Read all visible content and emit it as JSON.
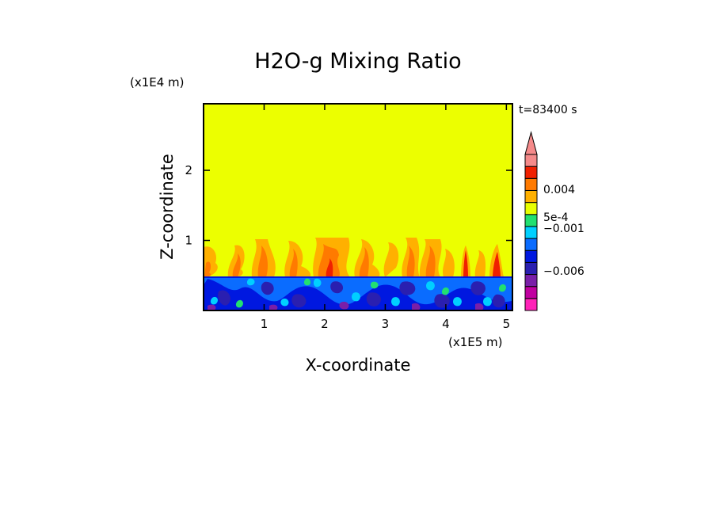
{
  "chart_data": {
    "type": "heatmap",
    "title": "H2O-g Mixing Ratio",
    "xlabel": "X-coordinate",
    "ylabel": "Z-coordinate",
    "x_scale_label": "(x1E5 m)",
    "y_scale_label": "(x1E4 m)",
    "time_label": "t=83400 s",
    "xlim": [
      0,
      5.1
    ],
    "ylim": [
      0,
      2.95
    ],
    "x_ticks": [
      1,
      2,
      3,
      4,
      5
    ],
    "y_ticks": [
      1,
      2
    ],
    "boundary_layer_top": 0.5,
    "colorbar": {
      "levels": [
        {
          "color": "#ff22b8"
        },
        {
          "color": "#c000a0"
        },
        {
          "color": "#7a1fa8"
        },
        {
          "color": "#2a1fb0"
        },
        {
          "color": "#0018e0"
        },
        {
          "color": "#0a6cff"
        },
        {
          "color": "#00d0ff"
        },
        {
          "color": "#22e070"
        },
        {
          "color": "#e8ff00"
        },
        {
          "color": "#ffb000"
        },
        {
          "color": "#ff7a00"
        },
        {
          "color": "#f02000"
        },
        {
          "color": "#f58a8a"
        }
      ],
      "labels": [
        {
          "text": "0.004",
          "value": 0.004
        },
        {
          "text": "5e-4",
          "value": 0.0005
        },
        {
          "text": "−0.001",
          "value": -0.001
        },
        {
          "text": "−0.006",
          "value": -0.006
        }
      ],
      "extend": "max"
    }
  }
}
